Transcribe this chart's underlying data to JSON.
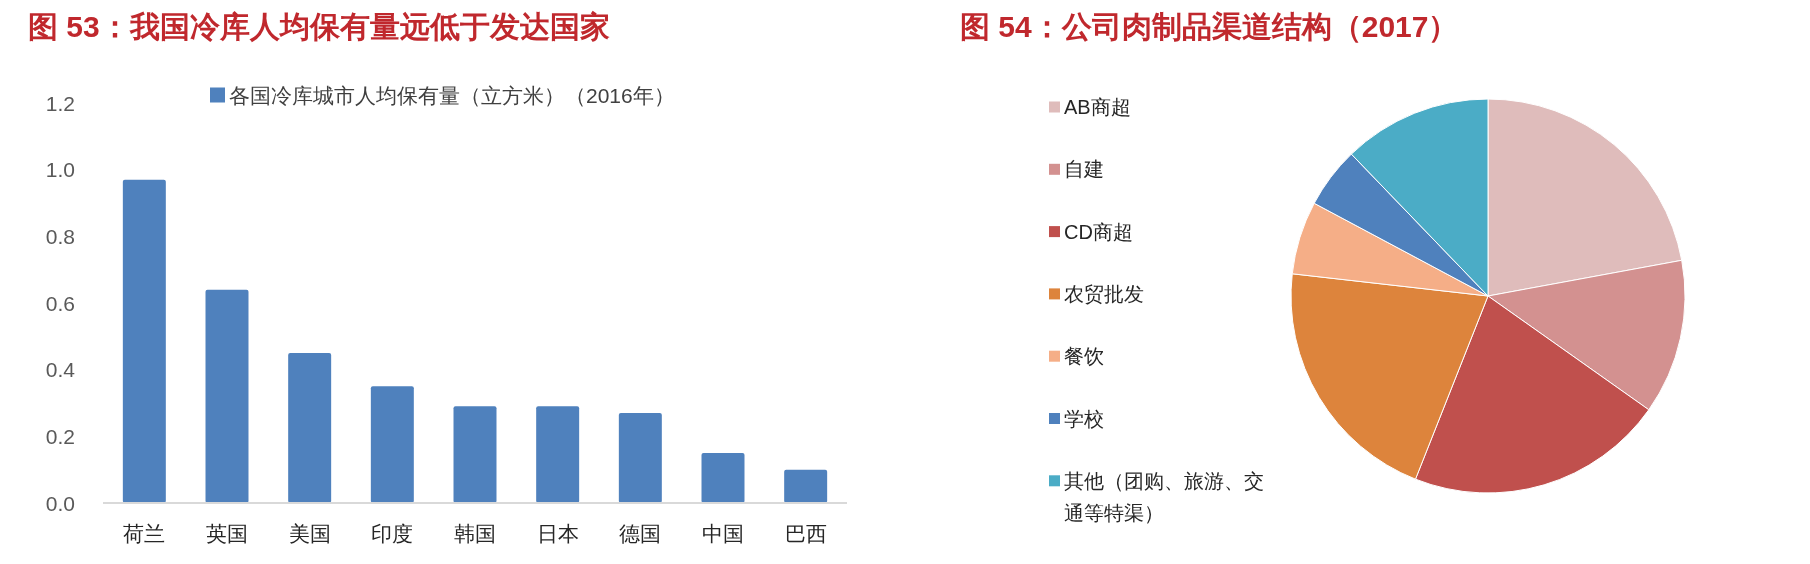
{
  "chart_data": [
    {
      "type": "bar",
      "title": "图 53：我国冷库人均保有量远低于发达国家",
      "categories": [
        "荷兰",
        "英国",
        "美国",
        "印度",
        "韩国",
        "日本",
        "德国",
        "中国",
        "巴西"
      ],
      "series": [
        {
          "name": "各国冷库城市人均保有量（立方米）（2016年）",
          "color": "#4f81bd",
          "values": [
            0.97,
            0.64,
            0.45,
            0.35,
            0.29,
            0.29,
            0.27,
            0.15,
            0.1
          ]
        }
      ],
      "ylim": [
        0,
        1.2
      ],
      "yticks": [
        {
          "value": 0,
          "label": "0.0"
        },
        0.2,
        0.4,
        0.6,
        0.8,
        {
          "value": 1,
          "label": "1.0"
        },
        1.2
      ],
      "legend": "top"
    },
    {
      "type": "pie",
      "title": "图 54：公司肉制品渠道结构（2017）",
      "categories": [
        "AB商超",
        "自建",
        "CD商超",
        "农贸批发",
        "餐饮",
        "学校",
        "其他（团购、旅游、交通等特渠）"
      ],
      "values": [
        22.1,
        12.7,
        21.2,
        20.8,
        6.0,
        5.0,
        12.2
      ],
      "colors": [
        "#dfbcbb",
        "#d39190",
        "#c0504d",
        "#dd843c",
        "#f5ae87",
        "#4f81bd",
        "#4bacc6"
      ],
      "legend": "left"
    }
  ]
}
